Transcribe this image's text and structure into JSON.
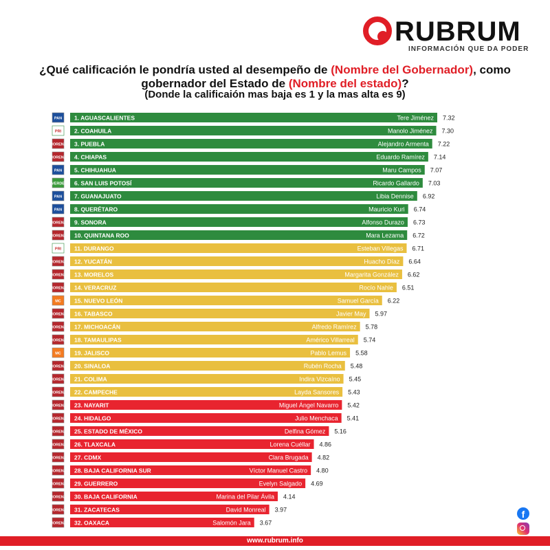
{
  "brand": {
    "name": "RUBRUM",
    "tagline": "INFORMACIÓN QUE DA PODER",
    "accent": "#e01e26"
  },
  "title": {
    "part1": "¿Qué calificación le pondría usted al desempeño de ",
    "highlight1": "(Nombre del Gobernador)",
    "part2": ", como gobernador del Estado de ",
    "highlight2": "(Nombre del estado)",
    "part3": "?"
  },
  "subtitle": "(Donde la calificaión mas baja es 1 y la mas alta es 9)",
  "footer": {
    "url": "www.rubrum.info"
  },
  "social": {
    "facebook": "f"
  },
  "colors": {
    "green": "#2e8b3e",
    "yellow": "#e9bf3f",
    "red": "#e8242f"
  },
  "chart_data": {
    "type": "bar",
    "orientation": "horizontal",
    "xlim": [
      0,
      7.32
    ],
    "rows": [
      {
        "rank": "1. AGUASCALIENTES",
        "governor": "Tere Jiménez",
        "value": 7.32,
        "label": "7.32",
        "band": "green",
        "party": "PAN"
      },
      {
        "rank": "2. COAHUILA",
        "governor": "Manolo Jiménez",
        "value": 7.3,
        "label": "7.30",
        "band": "green",
        "party": "PRI"
      },
      {
        "rank": "3. PUEBLA",
        "governor": "Alejandro Armenta",
        "value": 7.22,
        "label": "7.22",
        "band": "green",
        "party": "MORENA"
      },
      {
        "rank": "4. CHIAPAS",
        "governor": "Eduardo Ramírez",
        "value": 7.14,
        "label": "7.14",
        "band": "green",
        "party": "MORENA"
      },
      {
        "rank": "5. CHIHUAHUA",
        "governor": "Maru Campos",
        "value": 7.07,
        "label": "7.07",
        "band": "green",
        "party": "PAN"
      },
      {
        "rank": "6. SAN LUIS POTOSÍ",
        "governor": "Ricardo Gallardo",
        "value": 7.03,
        "label": "7.03",
        "band": "green",
        "party": "VERDE"
      },
      {
        "rank": "7. GUANAJUATO",
        "governor": "Libia Dennise",
        "value": 6.92,
        "label": "6.92",
        "band": "green",
        "party": "PAN"
      },
      {
        "rank": "8. QUERÉTARO",
        "governor": "Mauricio Kuri",
        "value": 6.74,
        "label": "6.74",
        "band": "green",
        "party": "PAN"
      },
      {
        "rank": "9. SONORA",
        "governor": "Alfonso Durazo",
        "value": 6.73,
        "label": "6.73",
        "band": "green",
        "party": "MORENA"
      },
      {
        "rank": "10. QUINTANA ROO",
        "governor": "Mara Lezama",
        "value": 6.72,
        "label": "6.72",
        "band": "green",
        "party": "MORENA"
      },
      {
        "rank": "11. DURANGO",
        "governor": "Esteban Villegas",
        "value": 6.71,
        "label": "6.71",
        "band": "yellow",
        "party": "PRI"
      },
      {
        "rank": "12. YUCATÁN",
        "governor": "Huacho Díaz",
        "value": 6.64,
        "label": "6.64",
        "band": "yellow",
        "party": "MORENA"
      },
      {
        "rank": "13. MORELOS",
        "governor": "Margarita González",
        "value": 6.62,
        "label": "6.62",
        "band": "yellow",
        "party": "MORENA"
      },
      {
        "rank": "14. VERACRUZ",
        "governor": "Rocío Nahle",
        "value": 6.51,
        "label": "6.51",
        "band": "yellow",
        "party": "MORENA"
      },
      {
        "rank": "15. NUEVO LEÓN",
        "governor": "Samuel García",
        "value": 6.22,
        "label": "6.22",
        "band": "yellow",
        "party": "MC"
      },
      {
        "rank": "16. TABASCO",
        "governor": "Javier May",
        "value": 5.97,
        "label": "5.97",
        "band": "yellow",
        "party": "MORENA"
      },
      {
        "rank": "17. MICHOACÁN",
        "governor": "Alfredo Ramírez",
        "value": 5.78,
        "label": "5.78",
        "band": "yellow",
        "party": "MORENA"
      },
      {
        "rank": "18. TAMAULIPAS",
        "governor": "Américo Villarreal",
        "value": 5.74,
        "label": "5.74",
        "band": "yellow",
        "party": "MORENA"
      },
      {
        "rank": "19. JALISCO",
        "governor": "Pablo Lemus",
        "value": 5.58,
        "label": "5.58",
        "band": "yellow",
        "party": "MC"
      },
      {
        "rank": "20. SINALOA",
        "governor": "Rubén Rocha",
        "value": 5.48,
        "label": "5.48",
        "band": "yellow",
        "party": "MORENA"
      },
      {
        "rank": "21. COLIMA",
        "governor": "Indira Vizcaíno",
        "value": 5.45,
        "label": "5.45",
        "band": "yellow",
        "party": "MORENA"
      },
      {
        "rank": "22. CAMPECHE",
        "governor": "Layda Sansores",
        "value": 5.43,
        "label": "5.43",
        "band": "yellow",
        "party": "MORENA"
      },
      {
        "rank": "23. NAYARIT",
        "governor": "Miguel Ángel Navarro",
        "value": 5.42,
        "label": "5.42",
        "band": "red",
        "party": "MORENA"
      },
      {
        "rank": "24. HIDALGO",
        "governor": "Julio Menchaca",
        "value": 5.41,
        "label": "5.41",
        "band": "red",
        "party": "MORENA"
      },
      {
        "rank": "25. ESTADO DE MÉXICO",
        "governor": "Delfina Gómez",
        "value": 5.16,
        "label": "5.16",
        "band": "red",
        "party": "MORENA"
      },
      {
        "rank": "26. TLAXCALA",
        "governor": "Lorena Cuéllar",
        "value": 4.86,
        "label": "4.86",
        "band": "red",
        "party": "MORENA"
      },
      {
        "rank": "27. CDMX",
        "governor": "Clara Brugada",
        "value": 4.82,
        "label": "4.82",
        "band": "red",
        "party": "MORENA"
      },
      {
        "rank": "28. BAJA CALIFORNIA SUR",
        "governor": "Víctor Manuel Castro",
        "value": 4.8,
        "label": "4.80",
        "band": "red",
        "party": "MORENA"
      },
      {
        "rank": "29. GUERRERO",
        "governor": "Evelyn Salgado",
        "value": 4.69,
        "label": "4.69",
        "band": "red",
        "party": "MORENA"
      },
      {
        "rank": "30. BAJA CALIFORNIA",
        "governor": "Marina del Pilar Ávila",
        "value": 4.14,
        "label": "4.14",
        "band": "red",
        "party": "MORENA"
      },
      {
        "rank": "31. ZACATECAS",
        "governor": "David Monreal",
        "value": 3.97,
        "label": "3.97",
        "band": "red",
        "party": "MORENA"
      },
      {
        "rank": "32. OAXACA",
        "governor": "Salomón Jara",
        "value": 3.67,
        "label": "3.67",
        "band": "red",
        "party": "MORENA"
      }
    ]
  }
}
